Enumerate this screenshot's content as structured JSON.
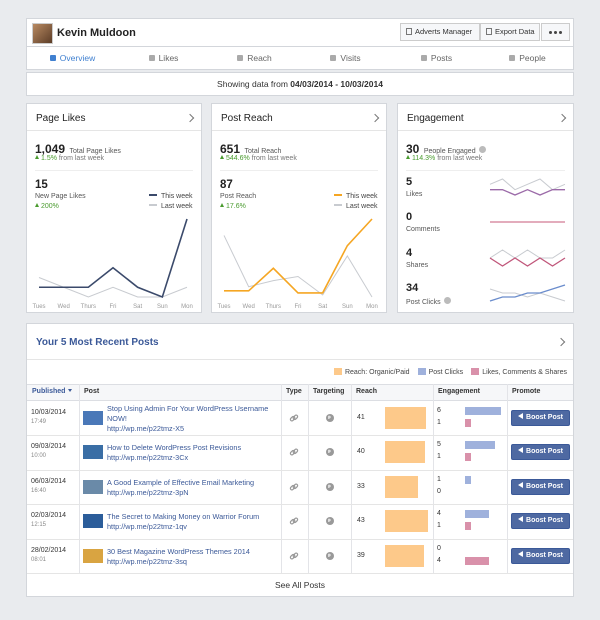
{
  "header": {
    "name": "Kevin Muldoon",
    "buttons": [
      "Adverts Manager",
      "Export Data"
    ]
  },
  "tabs": [
    "Overview",
    "Likes",
    "Reach",
    "Visits",
    "Posts",
    "People"
  ],
  "date_range": {
    "prefix": "Showing data from",
    "range": "04/03/2014 - 10/03/2014"
  },
  "cards": [
    {
      "title": "Page Likes",
      "total": "1,049",
      "total_label": "Total Page Likes",
      "change": "1.5%",
      "change_label": "from last week",
      "sub_value": "15",
      "sub_label": "New Page Likes",
      "sub_change": "200%",
      "chart": {
        "type": "line",
        "categories": [
          "Tues",
          "Wed",
          "Thurs",
          "Fri",
          "Sat",
          "Sun",
          "Mon"
        ],
        "series": [
          {
            "name": "This week",
            "color": "#3b4a6b",
            "values": [
              1,
              1,
              1,
              3,
              1,
              0,
              8
            ]
          },
          {
            "name": "Last week",
            "color": "#c8cbd0",
            "values": [
              2,
              1,
              0,
              1,
              0,
              0,
              1
            ]
          }
        ]
      }
    },
    {
      "title": "Post Reach",
      "total": "651",
      "total_label": "Total Reach",
      "change": "544.6%",
      "change_label": "from last week",
      "sub_value": "87",
      "sub_label": "Post Reach",
      "sub_change": "17.6%",
      "chart": {
        "type": "line",
        "categories": [
          "Tues",
          "Wed",
          "Thurs",
          "Fri",
          "Sat",
          "Sun",
          "Mon"
        ],
        "series": [
          {
            "name": "This week",
            "color": "#f5a623",
            "values": [
              3,
              3,
              14,
              2,
              2,
              25,
              38
            ]
          },
          {
            "name": "Last week",
            "color": "#c8cbd0",
            "values": [
              30,
              5,
              8,
              10,
              1,
              20,
              0
            ]
          }
        ]
      }
    },
    {
      "title": "Engagement",
      "total": "30",
      "total_label": "People Engaged",
      "change": "114.3%",
      "change_label": "from last week",
      "rows": [
        {
          "value": "5",
          "label": "Likes",
          "series": [
            {
              "color": "#c8cbd0",
              "values": [
                2,
                3,
                1,
                2,
                3,
                1,
                2
              ]
            },
            {
              "color": "#9b6aa8",
              "values": [
                1,
                1,
                0,
                1,
                0,
                1,
                1
              ]
            }
          ]
        },
        {
          "value": "0",
          "label": "Comments",
          "series": [
            {
              "color": "#c8cbd0",
              "values": [
                0,
                0,
                0,
                0,
                0,
                0,
                0
              ]
            },
            {
              "color": "#d27a93",
              "values": [
                0,
                0,
                0,
                0,
                0,
                0,
                0
              ]
            }
          ]
        },
        {
          "value": "4",
          "label": "Shares",
          "series": [
            {
              "color": "#c8cbd0",
              "values": [
                1,
                2,
                1,
                2,
                1,
                1,
                2
              ]
            },
            {
              "color": "#c0567a",
              "values": [
                1,
                0,
                1,
                0,
                1,
                0,
                1
              ]
            }
          ]
        },
        {
          "value": "34",
          "label": "Post Clicks",
          "series": [
            {
              "color": "#c8cbd0",
              "values": [
                6,
                5,
                5,
                4,
                5,
                4,
                3
              ]
            },
            {
              "color": "#6a8ccc",
              "values": [
                3,
                4,
                4,
                5,
                5,
                6,
                7
              ]
            }
          ]
        }
      ]
    }
  ],
  "posts": {
    "title": "Your 5 Most Recent Posts",
    "legend": [
      {
        "name": "Reach: Organic/Paid",
        "color": "#fdc98a"
      },
      {
        "name": "Post Clicks",
        "color": "#9fb1dc"
      },
      {
        "name": "Likes, Comments & Shares",
        "color": "#d991aa"
      }
    ],
    "columns": [
      "Published",
      "Post",
      "Type",
      "Targeting",
      "Reach",
      "Engagement",
      "Promote"
    ],
    "rows": [
      {
        "date": "10/03/2014",
        "time": "17:49",
        "title": "Stop Using Admin For Your WordPress Username NOW!",
        "link": "http://wp.me/p22tmz-X5",
        "reach": 41,
        "clicks": 6,
        "interactions": 1,
        "promote": "Boost Post"
      },
      {
        "date": "09/03/2014",
        "time": "10:00",
        "title": "How to Delete WordPress Post Revisions",
        "link": "http://wp.me/p22tmz-3Cx",
        "reach": 40,
        "clicks": 5,
        "interactions": 1,
        "promote": "Boost Post"
      },
      {
        "date": "06/03/2014",
        "time": "16:40",
        "title": "A Good Example of Effective Email Marketing",
        "link": "http://wp.me/p22tmz-3pN",
        "reach": 33,
        "clicks": 1,
        "interactions": 0,
        "promote": "Boost Post"
      },
      {
        "date": "02/03/2014",
        "time": "12:15",
        "title": "The Secret to Making Money on Warrior Forum",
        "link": "http://wp.me/p22tmz-1qv",
        "reach": 43,
        "clicks": 4,
        "interactions": 1,
        "promote": "Boost Post"
      },
      {
        "date": "28/02/2014",
        "time": "08:01",
        "title": "30 Best Magazine WordPress Themes 2014",
        "link": "http://wp.me/p22tmz-3sq",
        "reach": 39,
        "clicks": 0,
        "interactions": 4,
        "promote": "Boost Post"
      }
    ],
    "footer": "See All Posts"
  }
}
